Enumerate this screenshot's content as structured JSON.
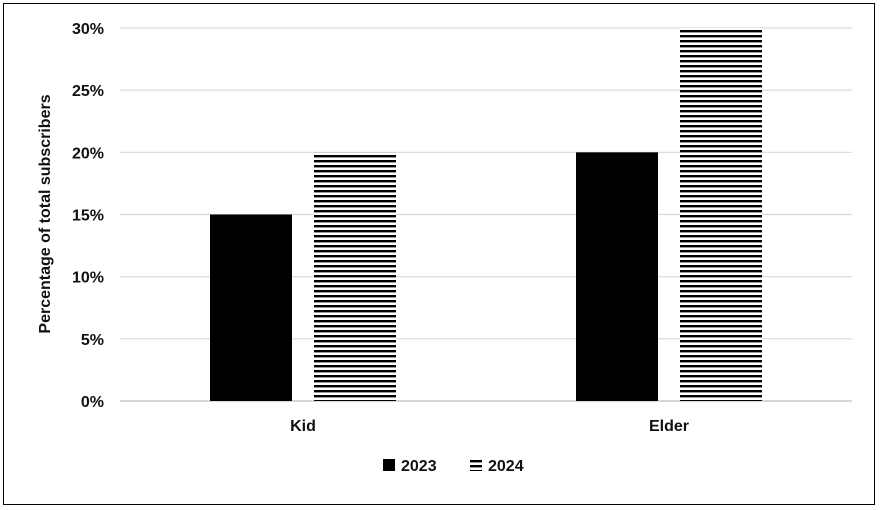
{
  "chart_data": {
    "type": "bar",
    "title": "",
    "ylabel": "Percentage of total subscribers",
    "xlabel": "",
    "categories": [
      "Kid",
      "Elder"
    ],
    "series": [
      {
        "name": "2023",
        "values": [
          15,
          20
        ],
        "fill": "solid-black"
      },
      {
        "name": "2024",
        "values": [
          20,
          30
        ],
        "fill": "horizontal-stripes"
      }
    ],
    "ylim": [
      0,
      30
    ],
    "yticks": [
      0,
      5,
      10,
      15,
      20,
      25,
      30
    ],
    "ytick_labels": [
      "0%",
      "5%",
      "10%",
      "15%",
      "20%",
      "25%",
      "30%"
    ],
    "grid": true,
    "legend_position": "bottom-center",
    "colors": {
      "bar": "#000000",
      "grid": "#d9d9d9",
      "background": "#ffffff"
    }
  }
}
